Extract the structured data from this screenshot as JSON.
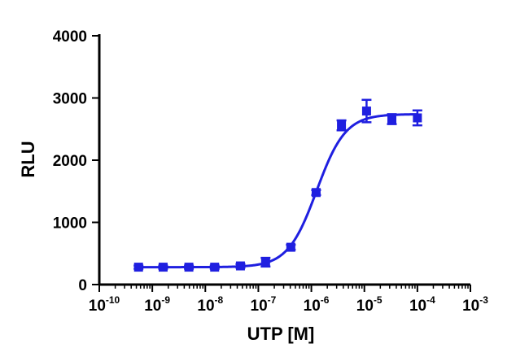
{
  "chart_data": {
    "type": "scatter",
    "title": "",
    "xlabel": "UTP [M]",
    "ylabel": "RLU",
    "x_scale": "log10",
    "xlim": [
      1e-10,
      0.001
    ],
    "ylim": [
      0,
      4000
    ],
    "x_ticks": [
      {
        "base": "10",
        "exp": "-10"
      },
      {
        "base": "10",
        "exp": "-9"
      },
      {
        "base": "10",
        "exp": "-8"
      },
      {
        "base": "10",
        "exp": "-7"
      },
      {
        "base": "10",
        "exp": "-6"
      },
      {
        "base": "10",
        "exp": "-5"
      },
      {
        "base": "10",
        "exp": "-4"
      },
      {
        "base": "10",
        "exp": "-3"
      }
    ],
    "y_ticks": [
      "0",
      "1000",
      "2000",
      "3000",
      "4000"
    ],
    "grid": false,
    "color": "#1f1fe0",
    "series": [
      {
        "marker": "square",
        "x": [
          5.5e-10,
          1.6e-09,
          4.9e-09,
          1.5e-08,
          4.6e-08,
          1.37e-07,
          4.1e-07,
          1.23e-06,
          3.7e-06,
          1.1e-05,
          3.3e-05,
          0.0001
        ],
        "y": [
          280,
          280,
          280,
          280,
          300,
          360,
          600,
          1480,
          2560,
          2790,
          2660,
          2680
        ],
        "err": [
          25,
          25,
          25,
          25,
          30,
          70,
          40,
          40,
          80,
          180,
          80,
          120
        ]
      }
    ],
    "fit_curve": {
      "type": "sigmoidal dose-response",
      "bottom": 280,
      "top": 2740,
      "log_ec50": -5.9,
      "hill_slope": 1.6,
      "x_range": [
        5e-10,
        0.0001
      ]
    }
  }
}
